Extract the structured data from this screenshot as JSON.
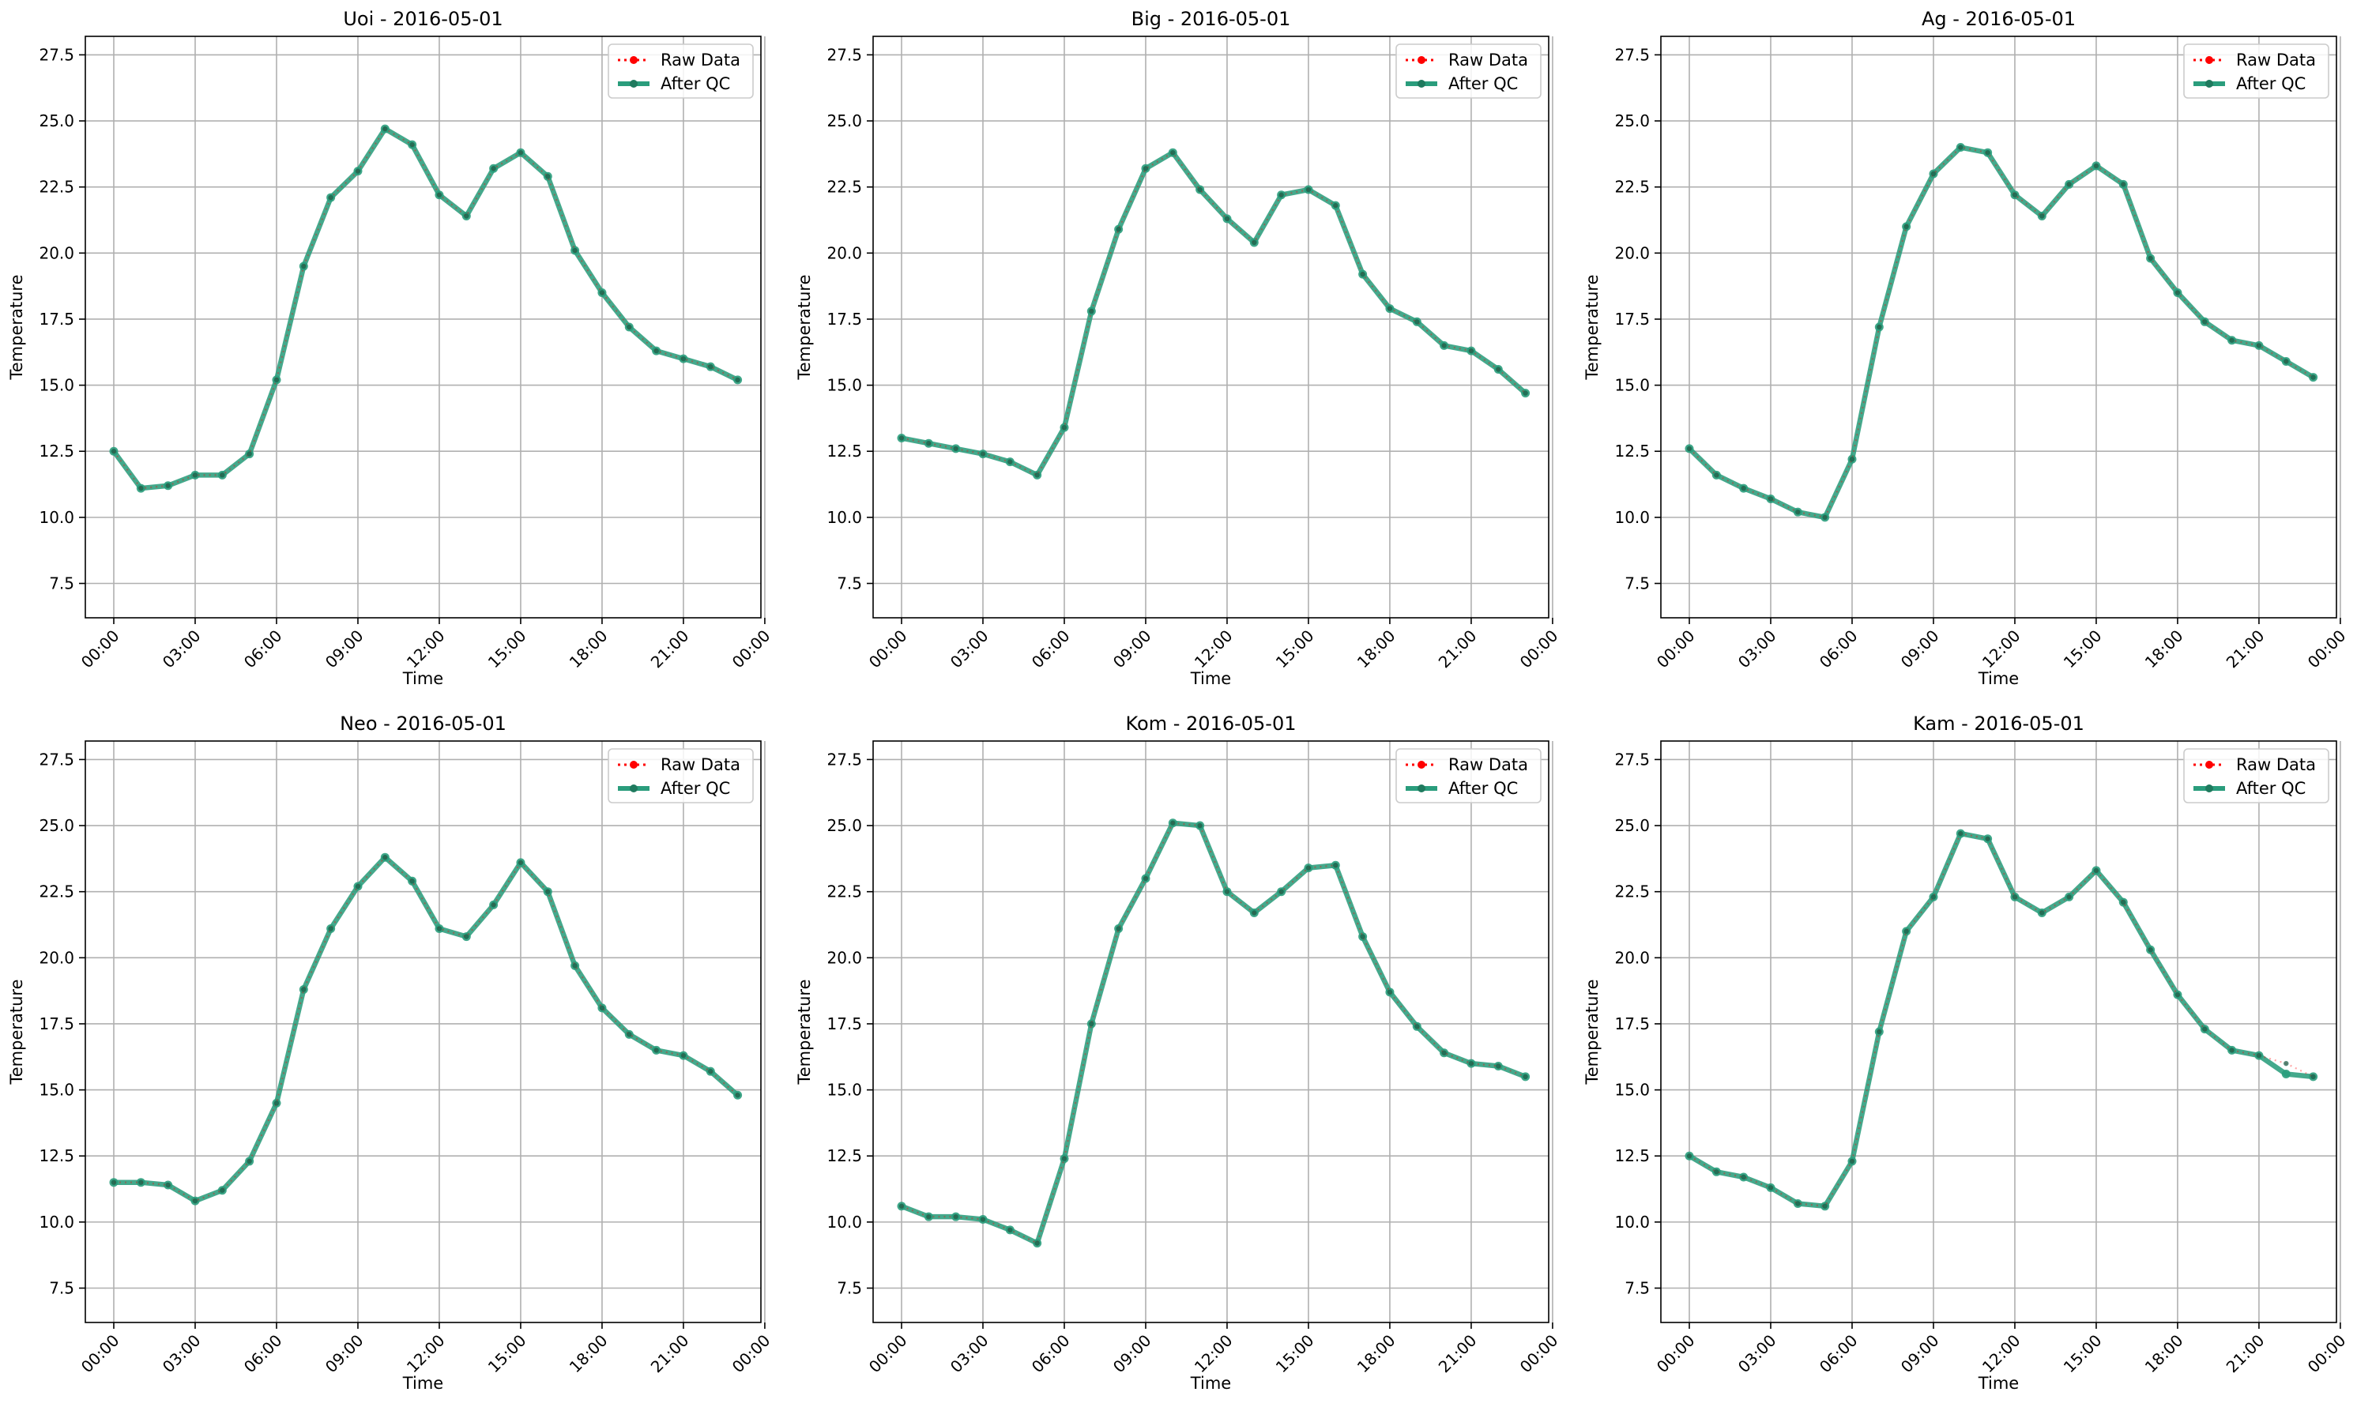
{
  "figure": {
    "background": "#ffffff"
  },
  "legend": {
    "raw_label": "Raw Data",
    "qc_label": "After QC",
    "placement": "upper-right"
  },
  "colors": {
    "raw": "#ff0000",
    "qc": "#2a9d7c",
    "grid": "#b0b0b0",
    "axis": "#000000"
  },
  "chart_data": [
    {
      "type": "line",
      "title": "Uoi - 2016-05-01",
      "xlabel": "Time",
      "ylabel": "Temperature",
      "x": [
        "00:00",
        "01:00",
        "02:00",
        "03:00",
        "04:00",
        "05:00",
        "06:00",
        "07:00",
        "08:00",
        "09:00",
        "10:00",
        "11:00",
        "12:00",
        "13:00",
        "14:00",
        "15:00",
        "16:00",
        "17:00",
        "18:00",
        "19:00",
        "20:00",
        "21:00",
        "22:00",
        "23:00"
      ],
      "xticks": [
        "00:00",
        "03:00",
        "06:00",
        "09:00",
        "12:00",
        "15:00",
        "18:00",
        "21:00",
        "00:00"
      ],
      "yticks": [
        "7.5",
        "10.0",
        "12.5",
        "15.0",
        "17.5",
        "20.0",
        "22.5",
        "25.0",
        "27.5"
      ],
      "ylim": [
        6.2,
        28.2
      ],
      "grid": true,
      "series": [
        {
          "name": "Raw Data",
          "values": [
            12.5,
            11.1,
            11.2,
            11.6,
            11.6,
            12.4,
            15.2,
            19.5,
            22.1,
            23.1,
            24.7,
            24.1,
            22.2,
            21.4,
            23.2,
            23.8,
            22.9,
            20.1,
            18.5,
            17.2,
            16.3,
            16.0,
            15.7,
            15.2
          ]
        },
        {
          "name": "After QC",
          "values": [
            12.5,
            11.1,
            11.2,
            11.6,
            11.6,
            12.4,
            15.2,
            19.5,
            22.1,
            23.1,
            24.7,
            24.1,
            22.2,
            21.4,
            23.2,
            23.8,
            22.9,
            20.1,
            18.5,
            17.2,
            16.3,
            16.0,
            15.7,
            15.2
          ]
        }
      ]
    },
    {
      "type": "line",
      "title": "Big - 2016-05-01",
      "xlabel": "Time",
      "ylabel": "Temperature",
      "x": [
        "00:00",
        "01:00",
        "02:00",
        "03:00",
        "04:00",
        "05:00",
        "06:00",
        "07:00",
        "08:00",
        "09:00",
        "10:00",
        "11:00",
        "12:00",
        "13:00",
        "14:00",
        "15:00",
        "16:00",
        "17:00",
        "18:00",
        "19:00",
        "20:00",
        "21:00",
        "22:00",
        "23:00"
      ],
      "xticks": [
        "00:00",
        "03:00",
        "06:00",
        "09:00",
        "12:00",
        "15:00",
        "18:00",
        "21:00",
        "00:00"
      ],
      "yticks": [
        "7.5",
        "10.0",
        "12.5",
        "15.0",
        "17.5",
        "20.0",
        "22.5",
        "25.0",
        "27.5"
      ],
      "ylim": [
        6.2,
        28.2
      ],
      "grid": true,
      "series": [
        {
          "name": "Raw Data",
          "values": [
            13.0,
            12.8,
            12.6,
            12.4,
            12.1,
            11.6,
            13.4,
            17.8,
            20.9,
            23.2,
            23.8,
            22.4,
            21.3,
            20.4,
            22.2,
            22.4,
            21.8,
            19.2,
            17.9,
            17.4,
            16.5,
            16.3,
            15.6,
            14.7
          ]
        },
        {
          "name": "After QC",
          "values": [
            13.0,
            12.8,
            12.6,
            12.4,
            12.1,
            11.6,
            13.4,
            17.8,
            20.9,
            23.2,
            23.8,
            22.4,
            21.3,
            20.4,
            22.2,
            22.4,
            21.8,
            19.2,
            17.9,
            17.4,
            16.5,
            16.3,
            15.6,
            14.7
          ]
        }
      ]
    },
    {
      "type": "line",
      "title": "Ag - 2016-05-01",
      "xlabel": "Time",
      "ylabel": "Temperature",
      "x": [
        "00:00",
        "01:00",
        "02:00",
        "03:00",
        "04:00",
        "05:00",
        "06:00",
        "07:00",
        "08:00",
        "09:00",
        "10:00",
        "11:00",
        "12:00",
        "13:00",
        "14:00",
        "15:00",
        "16:00",
        "17:00",
        "18:00",
        "19:00",
        "20:00",
        "21:00",
        "22:00",
        "23:00"
      ],
      "xticks": [
        "00:00",
        "03:00",
        "06:00",
        "09:00",
        "12:00",
        "15:00",
        "18:00",
        "21:00",
        "00:00"
      ],
      "yticks": [
        "7.5",
        "10.0",
        "12.5",
        "15.0",
        "17.5",
        "20.0",
        "22.5",
        "25.0",
        "27.5"
      ],
      "ylim": [
        6.2,
        28.2
      ],
      "grid": true,
      "series": [
        {
          "name": "Raw Data",
          "values": [
            12.6,
            11.6,
            11.1,
            10.7,
            10.2,
            10.0,
            12.2,
            17.2,
            21.0,
            23.0,
            24.0,
            23.8,
            22.2,
            21.4,
            22.6,
            23.3,
            22.6,
            19.8,
            18.5,
            17.4,
            16.7,
            16.5,
            15.9,
            15.3
          ]
        },
        {
          "name": "After QC",
          "values": [
            12.6,
            11.6,
            11.1,
            10.7,
            10.2,
            10.0,
            12.2,
            17.2,
            21.0,
            23.0,
            24.0,
            23.8,
            22.2,
            21.4,
            22.6,
            23.3,
            22.6,
            19.8,
            18.5,
            17.4,
            16.7,
            16.5,
            15.9,
            15.3
          ]
        }
      ]
    },
    {
      "type": "line",
      "title": "Neo - 2016-05-01",
      "xlabel": "Time",
      "ylabel": "Temperature",
      "x": [
        "00:00",
        "01:00",
        "02:00",
        "03:00",
        "04:00",
        "05:00",
        "06:00",
        "07:00",
        "08:00",
        "09:00",
        "10:00",
        "11:00",
        "12:00",
        "13:00",
        "14:00",
        "15:00",
        "16:00",
        "17:00",
        "18:00",
        "19:00",
        "20:00",
        "21:00",
        "22:00",
        "23:00"
      ],
      "xticks": [
        "00:00",
        "03:00",
        "06:00",
        "09:00",
        "12:00",
        "15:00",
        "18:00",
        "21:00",
        "00:00"
      ],
      "yticks": [
        "7.5",
        "10.0",
        "12.5",
        "15.0",
        "17.5",
        "20.0",
        "22.5",
        "25.0",
        "27.5"
      ],
      "ylim": [
        6.2,
        28.2
      ],
      "grid": true,
      "series": [
        {
          "name": "Raw Data",
          "values": [
            11.5,
            11.5,
            11.4,
            10.8,
            11.2,
            12.3,
            14.5,
            18.8,
            21.1,
            22.7,
            23.8,
            22.9,
            21.1,
            20.8,
            22.0,
            23.6,
            22.5,
            19.7,
            18.1,
            17.1,
            16.5,
            16.3,
            15.7,
            14.8
          ]
        },
        {
          "name": "After QC",
          "values": [
            11.5,
            11.5,
            11.4,
            10.8,
            11.2,
            12.3,
            14.5,
            18.8,
            21.1,
            22.7,
            23.8,
            22.9,
            21.1,
            20.8,
            22.0,
            23.6,
            22.5,
            19.7,
            18.1,
            17.1,
            16.5,
            16.3,
            15.7,
            14.8
          ]
        }
      ]
    },
    {
      "type": "line",
      "title": "Kom - 2016-05-01",
      "xlabel": "Time",
      "ylabel": "Temperature",
      "x": [
        "00:00",
        "01:00",
        "02:00",
        "03:00",
        "04:00",
        "05:00",
        "06:00",
        "07:00",
        "08:00",
        "09:00",
        "10:00",
        "11:00",
        "12:00",
        "13:00",
        "14:00",
        "15:00",
        "16:00",
        "17:00",
        "18:00",
        "19:00",
        "20:00",
        "21:00",
        "22:00",
        "23:00"
      ],
      "xticks": [
        "00:00",
        "03:00",
        "06:00",
        "09:00",
        "12:00",
        "15:00",
        "18:00",
        "21:00",
        "00:00"
      ],
      "yticks": [
        "7.5",
        "10.0",
        "12.5",
        "15.0",
        "17.5",
        "20.0",
        "22.5",
        "25.0",
        "27.5"
      ],
      "ylim": [
        6.2,
        28.2
      ],
      "grid": true,
      "series": [
        {
          "name": "Raw Data",
          "values": [
            10.6,
            10.2,
            10.2,
            10.1,
            9.7,
            9.2,
            12.4,
            17.5,
            21.1,
            23.0,
            25.1,
            25.0,
            22.5,
            21.7,
            22.5,
            23.4,
            23.5,
            20.8,
            18.7,
            17.4,
            16.4,
            16.0,
            15.9,
            15.5
          ]
        },
        {
          "name": "After QC",
          "values": [
            10.6,
            10.2,
            10.2,
            10.1,
            9.7,
            9.2,
            12.4,
            17.5,
            21.1,
            23.0,
            25.1,
            25.0,
            22.5,
            21.7,
            22.5,
            23.4,
            23.5,
            20.8,
            18.7,
            17.4,
            16.4,
            16.0,
            15.9,
            15.5
          ]
        }
      ]
    },
    {
      "type": "line",
      "title": "Kam - 2016-05-01",
      "xlabel": "Time",
      "ylabel": "Temperature",
      "x": [
        "00:00",
        "01:00",
        "02:00",
        "03:00",
        "04:00",
        "05:00",
        "06:00",
        "07:00",
        "08:00",
        "09:00",
        "10:00",
        "11:00",
        "12:00",
        "13:00",
        "14:00",
        "15:00",
        "16:00",
        "17:00",
        "18:00",
        "19:00",
        "20:00",
        "21:00",
        "22:00",
        "23:00"
      ],
      "xticks": [
        "00:00",
        "03:00",
        "06:00",
        "09:00",
        "12:00",
        "15:00",
        "18:00",
        "21:00",
        "00:00"
      ],
      "yticks": [
        "7.5",
        "10.0",
        "12.5",
        "15.0",
        "17.5",
        "20.0",
        "22.5",
        "25.0",
        "27.5"
      ],
      "ylim": [
        6.2,
        28.2
      ],
      "grid": true,
      "series": [
        {
          "name": "Raw Data",
          "values": [
            12.5,
            11.9,
            11.7,
            11.3,
            10.7,
            10.6,
            12.3,
            17.2,
            21.0,
            22.3,
            24.7,
            24.5,
            22.3,
            21.7,
            22.3,
            23.3,
            22.1,
            20.3,
            18.6,
            17.3,
            16.5,
            16.3,
            16.0,
            15.5
          ]
        },
        {
          "name": "After QC",
          "values": [
            12.5,
            11.9,
            11.7,
            11.3,
            10.7,
            10.6,
            12.3,
            17.2,
            21.0,
            22.3,
            24.7,
            24.5,
            22.3,
            21.7,
            22.3,
            23.3,
            22.1,
            20.3,
            18.6,
            17.3,
            16.5,
            16.3,
            15.6,
            15.5
          ]
        }
      ]
    }
  ]
}
